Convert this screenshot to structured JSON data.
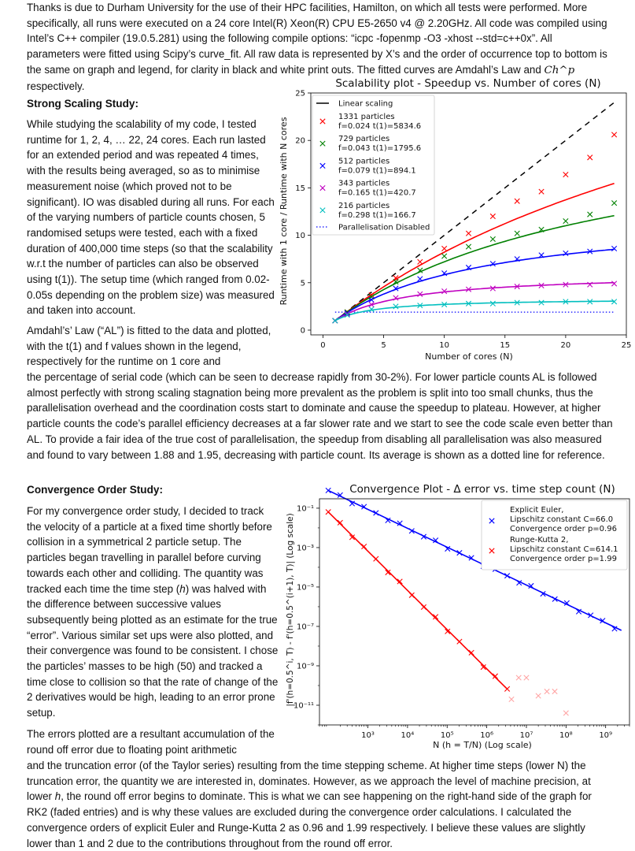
{
  "text": {
    "intro": "Thanks is due to Durham University for the use of their HPC facilities, Hamilton, on which all tests were performed. More specifically, all runs were executed on a 24 core Intel(R) Xeon(R) CPU E5-2650 v4 @ 2.20GHz. All code was compiled using Intel’s C++ compiler (19.0.5.281) using the following compile options: “icpc -fopenmp -O3 -xhost --std=c++0x”. All parameters were fitted using Scipy’s curve_fit. All raw data is represented by X’s and the order of occurrence top to bottom is the same on graph and legend, for clarity in black and white print outs. The fitted curves are Amdahl’s Law and",
    "intro_math": "Ch^p",
    "intro_end": " respectively.",
    "strong_heading": "Strong Scaling Study:",
    "strong_body": "While studying the scalability of my code, I tested runtime for 1, 2, 4, … 22, 24 cores. Each run lasted for an extended period and was repeated 4 times, with the results being averaged, so as to minimise measurement noise (which proved not to be significant). IO was disabled during all runs. For each of the varying numbers of particle counts chosen, 5 randomised setups were tested, each with a fixed duration of 400,000 time steps (so that the scalability w.r.t the number of particles can also be observed using t(1)). The setup time (which ranged from 0.02-0.05s depending on the problem size) was measured and taken into account.",
    "amdahl_body": "Amdahl’s’ Law (“AL”) is fitted to the data and plotted, with the t(1) and f values shown in the legend, respectively for the runtime on 1 core and",
    "amdahl_cont": "the percentage of serial code (which can be seen to decrease rapidly from 30-2%). For lower particle counts AL is followed almost perfectly with strong scaling stagnation being more prevalent as the problem is split into too small chunks, thus the parallelisation overhead and the coordination costs start to dominate and cause the speedup to plateau. However, at higher particle counts the code’s parallel efficiency decreases at a far slower rate and we start to see the code scale even better than AL. To provide a fair idea of the true cost of parallelisation, the speedup from disabling all parallelisation was also measured and found to vary between 1.88 and 1.95, decreasing with particle count. Its average is shown as a dotted line for reference.",
    "conv_heading": "Convergence Order Study:",
    "conv_body_1": "For my convergence order study, I decided to track the velocity of a particle at a fixed time shortly before collision in a symmetrical 2 particle setup. The particles began travelling in parallel before curving towards each other and colliding. The quantity was tracked each time the time step (",
    "conv_h1": "h",
    "conv_body_2": ") was halved with the difference between successive values subsequently being plotted as an estimate for the true “error”. Various similar set ups were also plotted, and their convergence was found to be consistent. I chose the particles’ masses to be high (50) and tracked a time close to collision so that the rate of change of the 2 derivatives would be high, leading to an error prone setup.",
    "errors_body": "The errors plotted are a resultant accumulation of the round off error due to floating point arithmetic",
    "errors_cont_1": "and the truncation error (of the Taylor series) resulting from the time stepping scheme. At higher time steps (lower N) the truncation error, the quantity we are interested in, dominates. However, as we approach the level of machine precision, at lower ",
    "errors_h": "h",
    "errors_cont_2": ", the round off error begins to dominate. This is what we can see happening on the right-hand side of the graph for RK2 (faded entries) and is why these values are excluded during the convergence order calculations. I calculated the convergence orders of explicit Euler and Runge-Kutta 2 as 0.96 and 1.99 respectively. I believe these values are slightly lower than 1 and 2 due to the contributions throughout from the round off error."
  },
  "chart_data": [
    {
      "type": "scatter",
      "title": "Scalability plot - Speedup vs. Number of cores (N)",
      "xlabel": "Number of cores (N)",
      "ylabel": "Runtime with 1 core / Runtime with N cores",
      "xlim": [
        -1,
        25
      ],
      "ylim": [
        -0.5,
        25
      ],
      "xticks": [
        0,
        5,
        10,
        15,
        20,
        25
      ],
      "yticks": [
        0,
        5,
        10,
        15,
        20,
        25
      ],
      "grid": false,
      "legend_position": "top-left",
      "x": [
        1,
        2,
        4,
        6,
        8,
        10,
        12,
        14,
        16,
        18,
        20,
        22,
        24
      ],
      "linear_scaling": {
        "name": "Linear scaling",
        "color": "#000000"
      },
      "parallelisation_disabled": {
        "name": "Parallelisation Disabled",
        "value": 1.9,
        "color": "#0000ff"
      },
      "series": [
        {
          "name": "1331 particles",
          "params": "f=0.024 t(1)=5834.6",
          "color": "#ff0000",
          "values": [
            1.0,
            1.9,
            3.7,
            5.5,
            7.2,
            8.6,
            10.2,
            12.0,
            13.6,
            14.6,
            16.4,
            18.2,
            20.6
          ]
        },
        {
          "name": "729 particles",
          "params": "f=0.043 t(1)=1795.6",
          "color": "#008000",
          "values": [
            1.0,
            1.9,
            3.5,
            5.1,
            6.3,
            7.8,
            8.8,
            9.6,
            10.2,
            10.6,
            11.5,
            12.2,
            13.4
          ]
        },
        {
          "name": "512 particles",
          "params": "f=0.079 t(1)=894.1",
          "color": "#0000ff",
          "values": [
            1.0,
            1.8,
            3.2,
            4.4,
            5.4,
            6.0,
            6.6,
            7.0,
            7.5,
            7.9,
            8.1,
            8.3,
            8.6
          ]
        },
        {
          "name": "343 particles",
          "params": "f=0.165 t(1)=420.7",
          "color": "#c000c0",
          "values": [
            1.0,
            1.7,
            2.7,
            3.4,
            3.8,
            4.1,
            4.3,
            4.4,
            4.6,
            4.7,
            4.8,
            4.8,
            4.9
          ]
        },
        {
          "name": "216 particles",
          "params": "f=0.298 t(1)=166.7",
          "color": "#00bfbf",
          "values": [
            1.0,
            1.6,
            2.2,
            2.5,
            2.6,
            2.7,
            2.8,
            2.8,
            2.9,
            2.9,
            3.0,
            3.0,
            3.0
          ]
        }
      ]
    },
    {
      "type": "scatter",
      "title": "Convergence Plot - Δ error vs. time step count (N)",
      "xlabel": "N (h = T/N) (Log scale)",
      "ylabel": "|f'(h=0.5^i, T) - f'(h=0.5^(i+1), T)| (Log scale)",
      "xscale": "log",
      "yscale": "log",
      "xlim": [
        60,
        4000000000
      ],
      "ylim": [
        1e-12,
        0.3
      ],
      "xticks": [
        "10³",
        "10⁴",
        "10⁵",
        "10⁶",
        "10⁷",
        "10⁸",
        "10⁹"
      ],
      "yticks": [
        "10⁻¹",
        "10⁻³",
        "10⁻⁵",
        "10⁻⁷",
        "10⁻⁹",
        "10⁻¹¹"
      ],
      "grid": false,
      "legend_position": "top-right",
      "series": [
        {
          "name": "Explicit Euler,",
          "params_1": "Lipschitz constant C=66.0",
          "params_2": "Convergence order p=0.96",
          "color": "#0000ff",
          "C": 66.0,
          "p": 0.96,
          "x_from": 100,
          "x_to": 2500000000
        },
        {
          "name": "Runge-Kutta 2,",
          "params_1": "Lipschitz constant C=614.1",
          "params_2": "Convergence order p=1.99",
          "color": "#ff0000",
          "C": 614.1,
          "p": 1.99,
          "x_from": 100,
          "x_to": 3300000,
          "faded_points": [
            [
              4200000,
              2e-11
            ],
            [
              6400000,
              2.5e-10
            ],
            [
              10000000,
              2.5e-10
            ],
            [
              20000000,
              3e-11
            ],
            [
              33000000,
              5e-11
            ],
            [
              52000000,
              5e-11
            ],
            [
              100000000,
              4e-12
            ]
          ]
        }
      ]
    }
  ]
}
